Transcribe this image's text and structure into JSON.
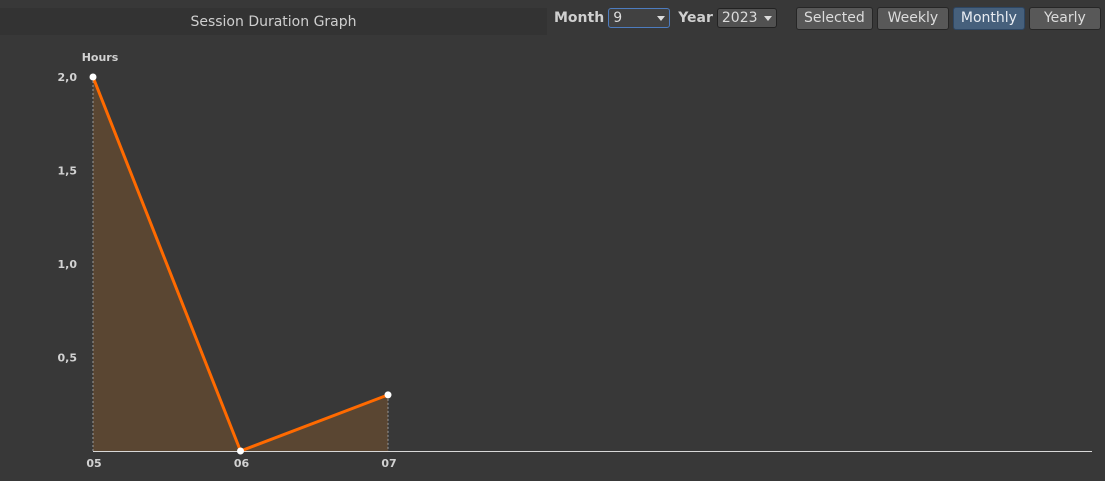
{
  "title": "Session Duration Graph",
  "toolbar": {
    "month_label": "Month",
    "month_value": "9",
    "year_label": "Year",
    "year_value": "2023",
    "buttons": [
      "Selected",
      "Weekly",
      "Monthly",
      "Yearly"
    ],
    "active_button": "Monthly"
  },
  "colors": {
    "line": "#ff6a00",
    "fill": "#5a4632",
    "accent": "#46607c"
  },
  "chart_data": {
    "type": "area",
    "ylabel": "Hours",
    "categories": [
      "05",
      "06",
      "07"
    ],
    "values": [
      2.0,
      0.0,
      0.3
    ],
    "ylim": [
      0,
      2.0
    ],
    "yticks": [
      "0,5",
      "1,0",
      "1,5",
      "2,0"
    ],
    "grid": false
  }
}
